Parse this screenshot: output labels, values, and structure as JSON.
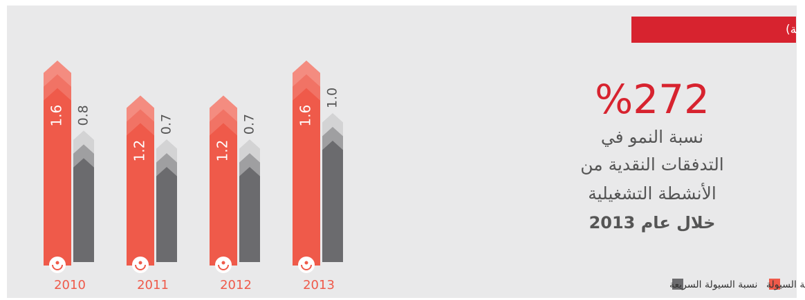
{
  "chart_data": {
    "type": "arrow-bar",
    "title": "سيولة للشركة (نسبة مئوية)",
    "highlight": "%272",
    "note_lines": [
      "نسبة النمو في",
      "التدفقات النقدية من",
      "الأنشطة التشغيلية",
      "خلال عام 2013"
    ],
    "categories": [
      "2010",
      "2011",
      "2012",
      "2013"
    ],
    "ylim": [
      -0.7,
      1.7
    ],
    "series": [
      {
        "name": "نسبة السيولة",
        "color": "#ef5a4a",
        "values": [
          1.6,
          1.2,
          1.2,
          1.6
        ]
      },
      {
        "name": "نسبة السيولة السريعة",
        "color": "#6b6b6e",
        "values": [
          0.8,
          0.7,
          0.7,
          1.0
        ],
        "value_labels": [
          "0.8",
          "0.7",
          "0.7",
          "1.0"
        ]
      }
    ]
  }
}
